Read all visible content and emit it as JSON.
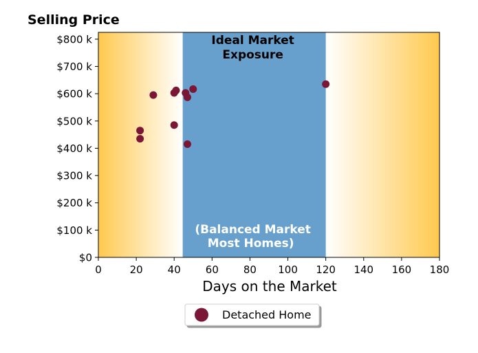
{
  "chart_data": {
    "type": "scatter",
    "title": "Selling Price",
    "xlabel": "Days on the Market",
    "ylabel": "",
    "xlim": [
      0,
      180
    ],
    "ylim": [
      0,
      825000
    ],
    "x_ticks": [
      0,
      20,
      40,
      60,
      80,
      100,
      120,
      140,
      160,
      180
    ],
    "x_tick_labels": [
      "0",
      "20",
      "40",
      "60",
      "80",
      "100",
      "120",
      "140",
      "160",
      "180"
    ],
    "y_ticks": [
      0,
      100000,
      200000,
      300000,
      400000,
      500000,
      600000,
      700000,
      800000
    ],
    "y_tick_labels": [
      "$0",
      "$100 k",
      "$200 k",
      "$300 k",
      "$400 k",
      "$500 k",
      "$600 k",
      "$700 k",
      "$800 k"
    ],
    "grid": false,
    "legend_position": "bottom-center",
    "band": {
      "x_range": [
        44.5,
        120
      ],
      "label_top": [
        "Ideal Market",
        "Exposure"
      ],
      "label_bottom": [
        "(Balanced Market",
        "Most Homes)"
      ],
      "color": "#67a0cd"
    },
    "background_gradient_color": "#ffc94f",
    "series": [
      {
        "name": "Detached Home",
        "color": "#7b1736",
        "points": [
          {
            "x": 22,
            "y": 465000
          },
          {
            "x": 22,
            "y": 435000
          },
          {
            "x": 29,
            "y": 595000
          },
          {
            "x": 40,
            "y": 485000
          },
          {
            "x": 40,
            "y": 603000
          },
          {
            "x": 41,
            "y": 612000
          },
          {
            "x": 46,
            "y": 603000
          },
          {
            "x": 47,
            "y": 587000
          },
          {
            "x": 47,
            "y": 415000
          },
          {
            "x": 50,
            "y": 617000
          },
          {
            "x": 120,
            "y": 635000
          }
        ]
      }
    ]
  }
}
